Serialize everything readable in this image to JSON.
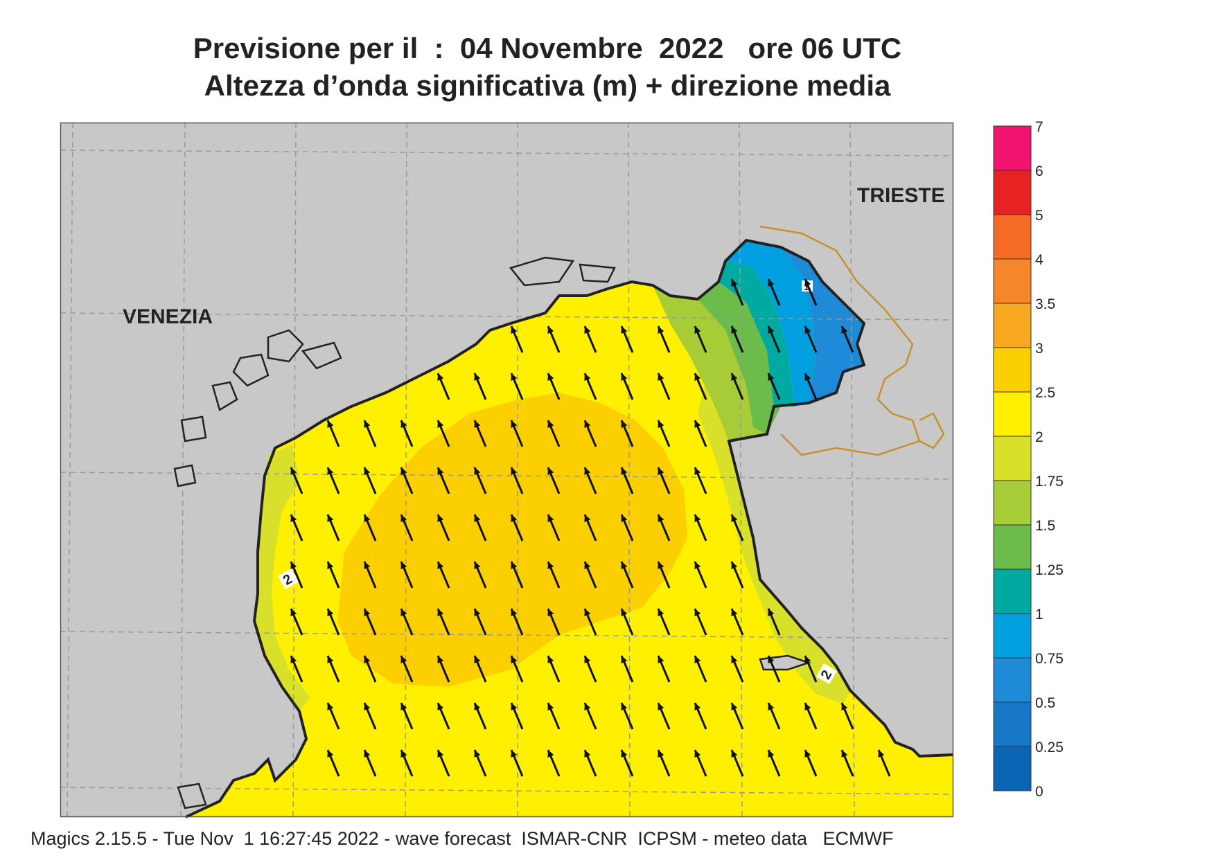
{
  "header": {
    "title_line1": "Previsione per il  :  04 Novembre  2022   ore 06 UTC",
    "title_line2": "Altezza d’onda significativa (m) + direzione media"
  },
  "map": {
    "place_labels": [
      "VENEZIA",
      "TRIESTE"
    ],
    "contour_labels": [
      "2",
      "2",
      "1"
    ],
    "wave_direction": "toward NNW",
    "colors": {
      "land": "#c8c8c8",
      "border": "#c8902a",
      "coast": "#222222"
    }
  },
  "legend": {
    "ticks": [
      "7",
      "6",
      "5",
      "4",
      "3.5",
      "3",
      "2.5",
      "2",
      "1.75",
      "1.5",
      "1.25",
      "1",
      "0.75",
      "0.5",
      "0.25",
      "0"
    ],
    "colors": [
      "#f0146e",
      "#e82222",
      "#f56a24",
      "#f5872a",
      "#f8a820",
      "#fcd000",
      "#fff000",
      "#d8e02a",
      "#a8cc38",
      "#6cbc4c",
      "#00aaa0",
      "#00a0e0",
      "#1e8ad8",
      "#1878c8",
      "#0c64b4"
    ]
  },
  "footer": {
    "credits": "Magics 2.15.5 - Tue Nov  1 16:27:45 2022 - wave forecast  ISMAR-CNR  ICPSM - meteo data   ECMWF"
  }
}
